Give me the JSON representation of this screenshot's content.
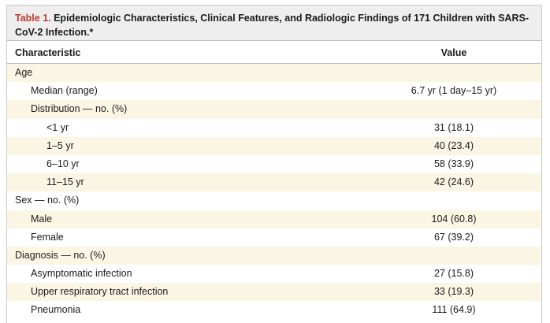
{
  "caption": {
    "label": "Table 1.",
    "text": " Epidemiologic Characteristics, Clinical Features, and Radiologic Findings of 171 Children with SARS-CoV-2 Infection.*"
  },
  "header": {
    "characteristic": "Characteristic",
    "value": "Value"
  },
  "rows": [
    {
      "label": "Age",
      "value": ""
    },
    {
      "label": "Median (range)",
      "value": "6.7 yr (1 day–15 yr)"
    },
    {
      "label": "Distribution — no. (%)",
      "value": ""
    },
    {
      "label": "<1 yr",
      "value": "31 (18.1)"
    },
    {
      "label": "1–5 yr",
      "value": "40 (23.4)"
    },
    {
      "label": "6–10 yr",
      "value": "58 (33.9)"
    },
    {
      "label": "11–15 yr",
      "value": "42 (24.6)"
    },
    {
      "label": "Sex — no. (%)",
      "value": ""
    },
    {
      "label": "Male",
      "value": "104 (60.8)"
    },
    {
      "label": "Female",
      "value": "67 (39.2)"
    },
    {
      "label": "Diagnosis — no. (%)",
      "value": ""
    },
    {
      "label": "Asymptomatic infection",
      "value": "27 (15.8)"
    },
    {
      "label": "Upper respiratory tract infection",
      "value": "33 (19.3)"
    },
    {
      "label": "Pneumonia",
      "value": "111 (64.9)"
    }
  ]
}
